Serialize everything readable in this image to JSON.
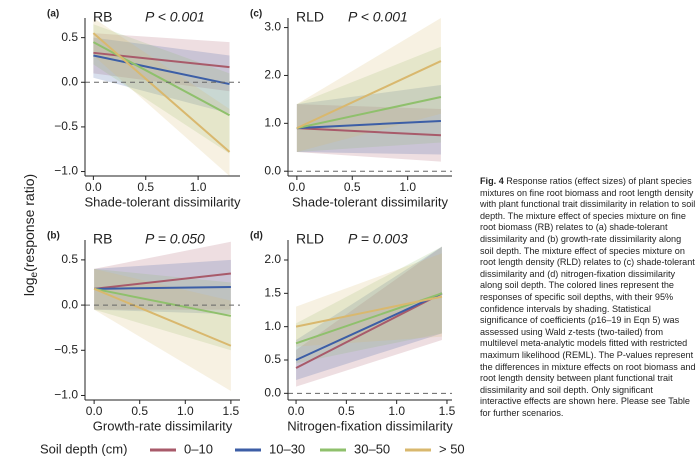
{
  "chart_data": [
    {
      "type": "line",
      "panel": "(a)",
      "response": "RB",
      "p_text": "P < 0.001",
      "x_label": "Shade-tolerant dissimilarity",
      "xlim": [
        -0.08,
        1.4
      ],
      "xticks": [
        {
          "value": 0,
          "label": "0.0"
        },
        {
          "value": 0.5,
          "label": "0.5"
        },
        {
          "value": 1,
          "label": "1.0"
        }
      ],
      "ylim": [
        -1.05,
        0.72
      ],
      "yticks": [
        {
          "value": -1,
          "label": "−1.0"
        },
        {
          "value": -0.5,
          "label": "−0.5"
        },
        {
          "value": 0,
          "label": "0.0"
        },
        {
          "value": 0.5,
          "label": "0.5"
        }
      ],
      "reference_line": 0,
      "series": [
        {
          "name": "0–10",
          "color": "#a85a6a",
          "x": [
            0,
            1.3
          ],
          "values": [
            0.33,
            0.17
          ],
          "lower": [
            0.1,
            -0.1
          ],
          "upper": [
            0.55,
            0.45
          ]
        },
        {
          "name": "10–30",
          "color": "#3c5ea6",
          "x": [
            0,
            1.3
          ],
          "values": [
            0.3,
            -0.02
          ],
          "lower": [
            0.05,
            -0.35
          ],
          "upper": [
            0.5,
            0.3
          ]
        },
        {
          "name": "30–50",
          "color": "#8fc06c",
          "x": [
            0,
            1.3
          ],
          "values": [
            0.45,
            -0.37
          ],
          "lower": [
            0.2,
            -0.8
          ],
          "upper": [
            0.65,
            0.1
          ]
        },
        {
          "name": "> 50",
          "color": "#d9b86e",
          "x": [
            0,
            1.3
          ],
          "values": [
            0.55,
            -0.78
          ],
          "lower": [
            0.3,
            -1.05
          ],
          "upper": [
            0.72,
            -0.3
          ]
        }
      ]
    },
    {
      "type": "line",
      "panel": "(c)",
      "response": "RLD",
      "p_text": "P < 0.001",
      "x_label": "Shade-tolerant dissimilarity",
      "xlim": [
        -0.08,
        1.4
      ],
      "xticks": [
        {
          "value": 0,
          "label": "0.0"
        },
        {
          "value": 0.5,
          "label": "0.5"
        },
        {
          "value": 1,
          "label": "1.0"
        }
      ],
      "ylim": [
        -0.1,
        3.2
      ],
      "yticks": [
        {
          "value": 0,
          "label": "0.0"
        },
        {
          "value": 1,
          "label": "1.0"
        },
        {
          "value": 2,
          "label": "2.0"
        },
        {
          "value": 3,
          "label": "3.0"
        }
      ],
      "reference_line": 0,
      "series": [
        {
          "name": "0–10",
          "color": "#a85a6a",
          "x": [
            0,
            1.3
          ],
          "values": [
            0.9,
            0.75
          ],
          "lower": [
            0.4,
            0.2
          ],
          "upper": [
            1.4,
            1.3
          ]
        },
        {
          "name": "10–30",
          "color": "#3c5ea6",
          "x": [
            0,
            1.3
          ],
          "values": [
            0.9,
            1.05
          ],
          "lower": [
            0.4,
            0.35
          ],
          "upper": [
            1.4,
            1.8
          ]
        },
        {
          "name": "30–50",
          "color": "#8fc06c",
          "x": [
            0,
            1.3
          ],
          "values": [
            0.9,
            1.55
          ],
          "lower": [
            0.4,
            0.6
          ],
          "upper": [
            1.4,
            2.6
          ]
        },
        {
          "name": "> 50",
          "color": "#d9b86e",
          "x": [
            0,
            1.3
          ],
          "values": [
            0.9,
            2.3
          ],
          "lower": [
            0.4,
            1.2
          ],
          "upper": [
            1.4,
            3.2
          ]
        }
      ]
    },
    {
      "type": "line",
      "panel": "(b)",
      "response": "RB",
      "p_text": "P = 0.050",
      "x_label": "Growth-rate dissimilarity",
      "xlim": [
        -0.1,
        1.6
      ],
      "xticks": [
        {
          "value": 0,
          "label": "0.0"
        },
        {
          "value": 0.5,
          "label": "0.5"
        },
        {
          "value": 1,
          "label": "1.0"
        },
        {
          "value": 1.5,
          "label": "1.5"
        }
      ],
      "ylim": [
        -1.05,
        0.72
      ],
      "yticks": [
        {
          "value": -1,
          "label": "−1.0"
        },
        {
          "value": -0.5,
          "label": "−0.5"
        },
        {
          "value": 0,
          "label": "0.0"
        },
        {
          "value": 0.5,
          "label": "0.5"
        }
      ],
      "reference_line": 0,
      "series": [
        {
          "name": "0–10",
          "color": "#a85a6a",
          "x": [
            0,
            1.5
          ],
          "values": [
            0.18,
            0.35
          ],
          "lower": [
            -0.05,
            -0.05
          ],
          "upper": [
            0.4,
            0.7
          ]
        },
        {
          "name": "10–30",
          "color": "#3c5ea6",
          "x": [
            0,
            1.5
          ],
          "values": [
            0.18,
            0.2
          ],
          "lower": [
            -0.05,
            -0.1
          ],
          "upper": [
            0.4,
            0.5
          ]
        },
        {
          "name": "30–50",
          "color": "#8fc06c",
          "x": [
            0,
            1.5
          ],
          "values": [
            0.18,
            -0.12
          ],
          "lower": [
            -0.05,
            -0.5
          ],
          "upper": [
            0.4,
            0.25
          ]
        },
        {
          "name": "> 50",
          "color": "#d9b86e",
          "x": [
            0,
            1.5
          ],
          "values": [
            0.18,
            -0.45
          ],
          "lower": [
            -0.05,
            -0.95
          ],
          "upper": [
            0.4,
            0.05
          ]
        }
      ]
    },
    {
      "type": "line",
      "panel": "(d)",
      "response": "RLD",
      "p_text": "P = 0.003",
      "x_label": "Nitrogen-fixation dissimilarity",
      "xlim": [
        -0.08,
        1.55
      ],
      "xticks": [
        {
          "value": 0,
          "label": "0.0"
        },
        {
          "value": 0.5,
          "label": "0.5"
        },
        {
          "value": 1,
          "label": "1.0"
        },
        {
          "value": 1.5,
          "label": "1.5"
        }
      ],
      "ylim": [
        -0.1,
        2.3
      ],
      "yticks": [
        {
          "value": 0,
          "label": "0.0"
        },
        {
          "value": 0.5,
          "label": "0.5"
        },
        {
          "value": 1,
          "label": "1.0"
        },
        {
          "value": 1.5,
          "label": "1.5"
        },
        {
          "value": 2,
          "label": "2.0"
        }
      ],
      "reference_line": 0,
      "series": [
        {
          "name": "0–10",
          "color": "#a85a6a",
          "x": [
            0,
            1.45
          ],
          "values": [
            0.38,
            1.5
          ],
          "lower": [
            0.1,
            0.8
          ],
          "upper": [
            0.65,
            2.2
          ]
        },
        {
          "name": "10–30",
          "color": "#3c5ea6",
          "x": [
            0,
            1.45
          ],
          "values": [
            0.5,
            1.5
          ],
          "lower": [
            0.2,
            0.9
          ],
          "upper": [
            0.8,
            2.2
          ]
        },
        {
          "name": "30–50",
          "color": "#8fc06c",
          "x": [
            0,
            1.45
          ],
          "values": [
            0.75,
            1.5
          ],
          "lower": [
            0.45,
            0.9
          ],
          "upper": [
            1.05,
            2.2
          ]
        },
        {
          "name": "> 50",
          "color": "#d9b86e",
          "x": [
            0,
            1.45
          ],
          "values": [
            1.0,
            1.45
          ],
          "lower": [
            0.7,
            0.85
          ],
          "upper": [
            1.3,
            2.1
          ]
        }
      ]
    }
  ],
  "y_label": {
    "base": "log",
    "sub": "e",
    "rest": "(response ratio)"
  },
  "legend_title": "Soil depth (cm)",
  "caption": {
    "label": "Fig. 4",
    "text": "Response ratios (effect sizes) of plant species mixtures on fine root biomass and root length density with plant functional trait dissimilarity in relation to soil depth. The mixture effect of species mixture on fine root biomass (RB) relates to (a) shade-tolerant dissimilarity and (b) growth-rate dissimilarity along soil depth. The mixture effect of species mixture on root length density (RLD) relates to (c) shade-tolerant dissimilarity and (d) nitrogen-fixation dissimilarity along soil depth. The colored lines represent the responses of specific soil depths, with their 95% confidence intervals by shading. Statistical significance of coefficients (ρ16–19 in Eqn 5) was assessed using Wald z-tests (two-tailed) from multilevel meta-analytic models fitted with restricted maximum likelihood (REML). The P-values represent the differences in mixture effects on root biomass and root length density between plant functional trait dissimilarity and soil depth. Only significant interactive effects are shown here. Please see Table for further scenarios."
  }
}
